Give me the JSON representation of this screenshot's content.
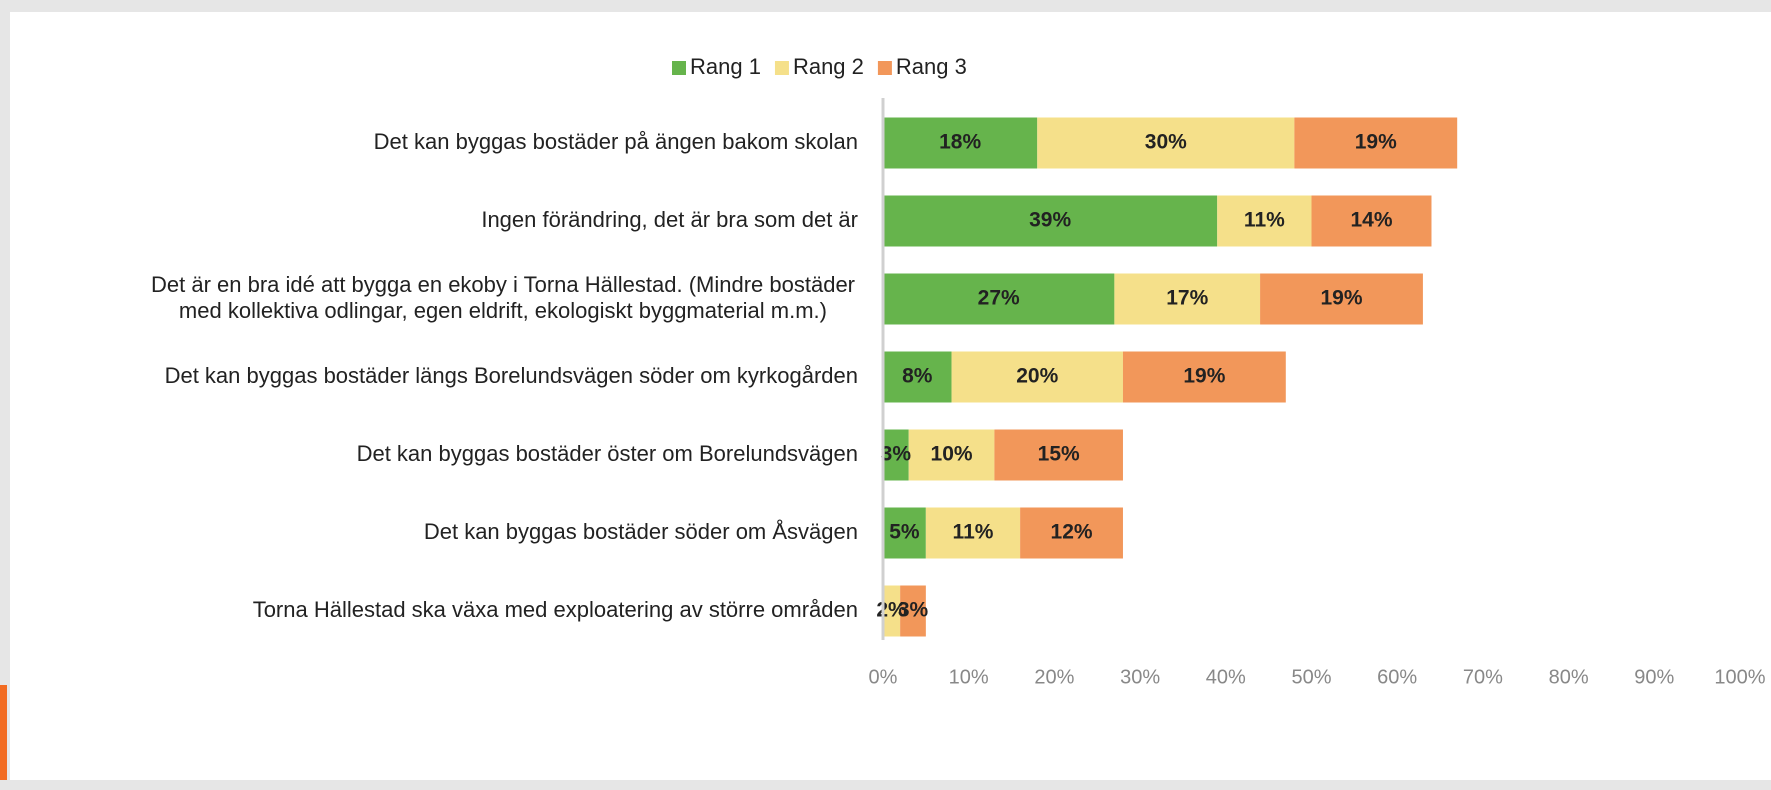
{
  "chart_data": {
    "type": "stacked_barh",
    "categories": [
      "Det kan byggas bostäder på ängen bakom skolan",
      "Ingen förändring, det är bra som det är",
      [
        "Det är en bra idé att bygga en ekoby i Torna Hällestad. (Mindre bostäder",
        "med kollektiva odlingar, egen eldrift, ekologiskt byggmaterial m.m.)"
      ],
      "Det kan byggas bostäder längs Borelundsvägen söder om kyrkogården",
      "Det kan byggas bostäder öster om Borelundsvägen",
      "Det kan byggas bostäder söder om Åsvägen",
      "Torna Hällestad ska växa med exploatering av större områden"
    ],
    "series": [
      {
        "name": "Rang 1",
        "color": "#66b44c",
        "values": [
          18,
          39,
          27,
          8,
          3,
          5,
          null
        ],
        "value_labels": [
          "18%",
          "39%",
          "27%",
          "8%",
          "3%",
          "5%",
          null
        ]
      },
      {
        "name": "Rang 2",
        "color": "#f5e08a",
        "values": [
          30,
          11,
          17,
          20,
          10,
          11,
          2
        ],
        "value_labels": [
          "30%",
          "11%",
          "17%",
          "20%",
          "10%",
          "11%",
          "2%"
        ]
      },
      {
        "name": "Rang 3",
        "color": "#f2975a",
        "values": [
          19,
          14,
          19,
          19,
          15,
          12,
          3
        ],
        "value_labels": [
          "19%",
          "14%",
          "19%",
          "19%",
          "15%",
          "12%",
          "3%"
        ]
      }
    ],
    "xlim": [
      0,
      100
    ],
    "xticks": [
      {
        "value": 0,
        "label": "0%"
      },
      {
        "value": 10,
        "label": "10%"
      },
      {
        "value": 20,
        "label": "20%"
      },
      {
        "value": 30,
        "label": "30%"
      },
      {
        "value": 40,
        "label": "40%"
      },
      {
        "value": 50,
        "label": "50%"
      },
      {
        "value": 60,
        "label": "60%"
      },
      {
        "value": 70,
        "label": "70%"
      },
      {
        "value": 80,
        "label": "80%"
      },
      {
        "value": 90,
        "label": "90%"
      },
      {
        "value": 100,
        "label": "100%"
      }
    ],
    "legend": "top"
  }
}
